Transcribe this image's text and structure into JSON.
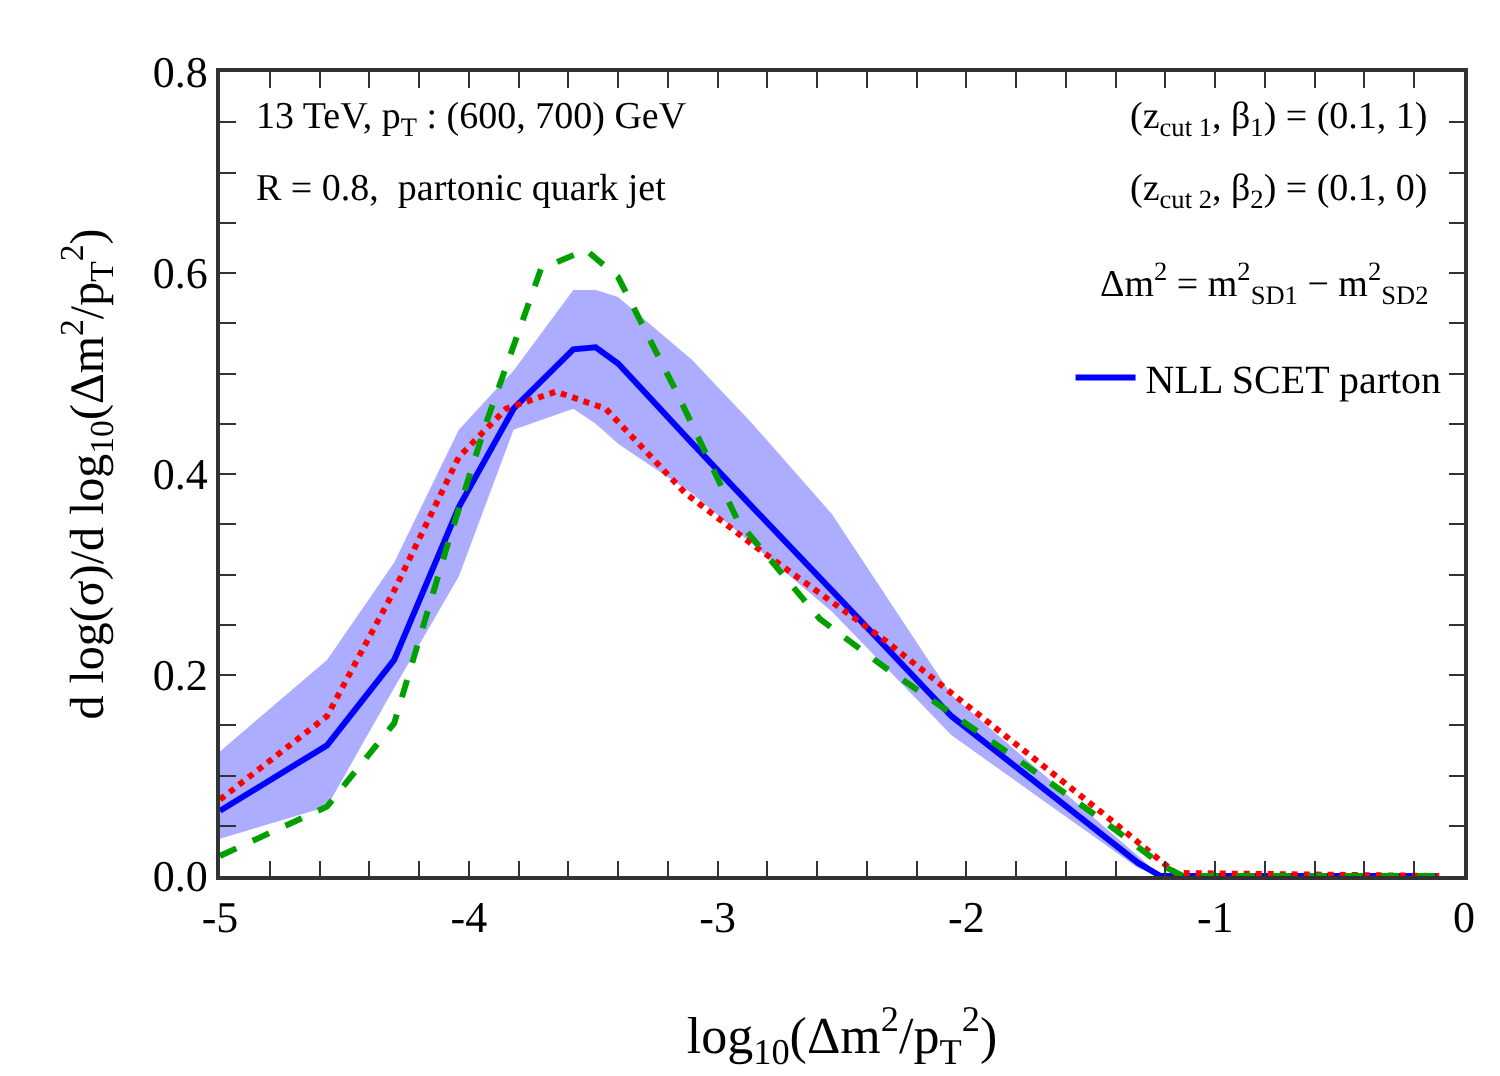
{
  "chart_data": {
    "type": "line",
    "xlabel": "log$_{10}$(Δm$^{2}$/p$_{T}$$^{2}$)",
    "ylabel": "d log(σ)/d log$_{10}$(Δm$^{2}$/p$_{T}$$^{2}$)",
    "annotations": [
      "13 TeV, p$_{T}$ : (600, 700) GeV",
      "R = 0.8,  partonic quark jet",
      "(z$_{cut 1}$, β$_{1}$) = (0.1, 1)",
      "(z$_{cut 2}$, β$_{2}$) = (0.1, 0)",
      "Δm$^{2}$ = m$^{2}$$_{SD1}$ − m$^{2}$$_{SD2}$"
    ],
    "series": [
      {
        "name": "NLL SCET parton",
        "color": "#0000ff",
        "line_style": "solid",
        "x": [
          -5,
          -4.57,
          -4.3,
          -4.04,
          -3.82,
          -3.58,
          -3.49,
          -3.4,
          -3.1,
          -2.86,
          -2.54,
          -2.06,
          -1.31,
          -1.22,
          -0.1
        ],
        "values": [
          0.065,
          0.13,
          0.215,
          0.367,
          0.465,
          0.524,
          0.526,
          0.51,
          0.43,
          0.367,
          0.284,
          0.159,
          0.013,
          0,
          0
        ],
        "lower": [
          0.037,
          0.069,
          0.187,
          0.298,
          0.444,
          0.465,
          0.45,
          0.43,
          0.38,
          0.33,
          0.263,
          0.14,
          0.008,
          0,
          0
        ],
        "upper": [
          0.124,
          0.215,
          0.312,
          0.444,
          0.503,
          0.583,
          0.583,
          0.576,
          0.513,
          0.45,
          0.36,
          0.18,
          0.02,
          0,
          0
        ]
      },
      {
        "color": "#ff0000",
        "line_style": "dotted",
        "x": [
          -5,
          -4.57,
          -4.3,
          -4.04,
          -3.85,
          -3.65,
          -3.45,
          -3.13,
          -2.85,
          -2.33,
          -1.8,
          -1.45,
          -1.16,
          -0.1
        ],
        "values": [
          0.076,
          0.159,
          0.284,
          0.417,
          0.465,
          0.482,
          0.465,
          0.381,
          0.328,
          0.235,
          0.131,
          0.062,
          0.003,
          0
        ]
      },
      {
        "color": "#00a000",
        "line_style": "dashed",
        "x": [
          -5,
          -4.57,
          -4.3,
          -4.09,
          -3.93,
          -3.71,
          -3.53,
          -3.4,
          -3.16,
          -2.92,
          -2.59,
          -2.33,
          -1.8,
          -1.45,
          -1.21,
          -1.13,
          -0.1
        ],
        "values": [
          0.02,
          0.069,
          0.152,
          0.326,
          0.451,
          0.604,
          0.623,
          0.596,
          0.479,
          0.354,
          0.256,
          0.208,
          0.117,
          0.055,
          0.01,
          0,
          0
        ]
      }
    ],
    "xlim": [
      -5,
      0
    ],
    "xticks": [
      -5,
      {
        "value": -4.8,
        "label": null
      },
      {
        "value": -4.6,
        "label": null
      },
      {
        "value": -4.4,
        "label": null
      },
      {
        "value": -4.2,
        "label": null
      },
      -4,
      {
        "value": -3.8,
        "label": null
      },
      {
        "value": -3.6,
        "label": null
      },
      {
        "value": -3.4,
        "label": null
      },
      {
        "value": -3.2,
        "label": null
      },
      -3,
      {
        "value": -2.8,
        "label": null
      },
      {
        "value": -2.6,
        "label": null
      },
      {
        "value": -2.4,
        "label": null
      },
      {
        "value": -2.2,
        "label": null
      },
      -2,
      {
        "value": -1.8,
        "label": null
      },
      {
        "value": -1.6,
        "label": null
      },
      {
        "value": -1.4,
        "label": null
      },
      {
        "value": -1.2,
        "label": null
      },
      -1,
      {
        "value": -0.8,
        "label": null
      },
      {
        "value": -0.6,
        "label": null
      },
      {
        "value": -0.4,
        "label": null
      },
      {
        "value": -0.2,
        "label": null
      },
      0
    ],
    "ylim": [
      0,
      0.8
    ],
    "yticks": [
      {
        "value": 0,
        "label": "0.0"
      },
      {
        "value": 0.05,
        "label": null
      },
      {
        "value": 0.1,
        "label": null
      },
      {
        "value": 0.15,
        "label": null
      },
      {
        "value": 0.2,
        "label": "0.2"
      },
      {
        "value": 0.25,
        "label": null
      },
      {
        "value": 0.3,
        "label": null
      },
      {
        "value": 0.35,
        "label": null
      },
      {
        "value": 0.4,
        "label": "0.4"
      },
      {
        "value": 0.45,
        "label": null
      },
      {
        "value": 0.5,
        "label": null
      },
      {
        "value": 0.55,
        "label": null
      },
      {
        "value": 0.6,
        "label": "0.6"
      },
      {
        "value": 0.65,
        "label": null
      },
      {
        "value": 0.7,
        "label": null
      },
      {
        "value": 0.75,
        "label": null
      },
      {
        "value": 0.8,
        "label": "0.8"
      }
    ],
    "legend": "right",
    "marker": "none"
  }
}
